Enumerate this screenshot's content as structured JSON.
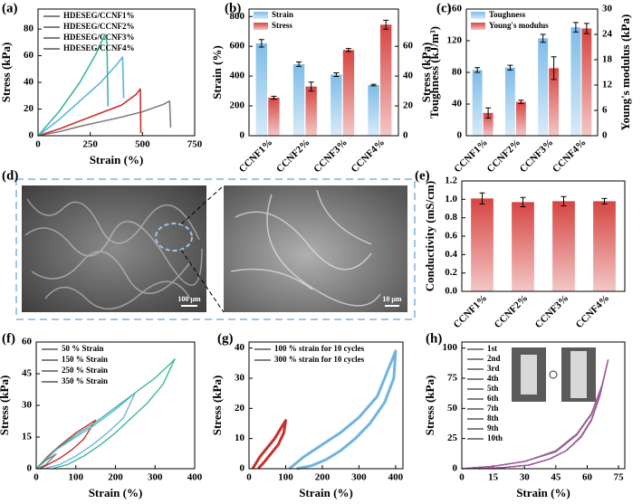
{
  "chart_data": [
    {
      "panel": "(a)",
      "type": "line",
      "xlabel": "Strain (%)",
      "ylabel": "Stress (kPa)",
      "xlim": [
        0,
        750
      ],
      "xticks": [
        0,
        250,
        500,
        750
      ],
      "ylim": [
        0,
        95
      ],
      "yticks": [
        0,
        20,
        40,
        60,
        80
      ],
      "series": [
        {
          "name": "HDESEG/CCNF1%",
          "color": "#808080",
          "x": [
            0,
            100,
            200,
            300,
            400,
            500,
            600,
            630,
            635
          ],
          "values": [
            0,
            3,
            7,
            10.5,
            14,
            18,
            23.5,
            26,
            6
          ]
        },
        {
          "name": "HDESEG/CCNF2%",
          "color": "#c9302c",
          "x": [
            0,
            100,
            200,
            300,
            400,
            470,
            490,
            492
          ],
          "values": [
            0,
            5,
            11,
            17,
            23,
            31,
            35,
            2
          ]
        },
        {
          "name": "HDESEG/CCNF3%",
          "color": "#5ab4e5",
          "x": [
            0,
            100,
            200,
            300,
            380,
            405,
            410
          ],
          "values": [
            0,
            12,
            26,
            40,
            54,
            59,
            28
          ]
        },
        {
          "name": "HDESEG/CCNF4%",
          "color": "#3cb89a",
          "x": [
            0,
            100,
            200,
            280,
            320,
            330,
            335
          ],
          "values": [
            0,
            18,
            40,
            62,
            76,
            70,
            22
          ]
        }
      ]
    },
    {
      "panel": "(b)",
      "type": "bar",
      "ylabel": "Strain (%)",
      "y2label": "Stress (kPa)",
      "categories": [
        "CCNF1%",
        "CCNF2%",
        "CCNF3%",
        "CCNF4%"
      ],
      "ylim": [
        0,
        850
      ],
      "yticks": [
        0,
        200,
        400,
        600,
        800
      ],
      "y2lim": [
        0,
        85
      ],
      "y2ticks": [
        0,
        20,
        40,
        60
      ],
      "series": [
        {
          "name": "Strain",
          "color": "#7dbce8",
          "values": [
            620,
            480,
            410,
            340
          ],
          "errors": [
            25,
            15,
            12,
            5
          ]
        },
        {
          "name": "Stress",
          "color": "#d64541",
          "axis": "y2",
          "values": [
            25.5,
            33,
            57.5,
            74.5
          ],
          "errors": [
            1,
            3,
            1,
            3
          ]
        }
      ]
    },
    {
      "panel": "(c)",
      "type": "bar",
      "ylabel": "Toughness (kJ/m³)",
      "y2label": "Young's modulus (kPa)",
      "categories": [
        "CCNF1%",
        "CCNF2%",
        "CCNF3%",
        "CCNF4%"
      ],
      "ylim": [
        0,
        160
      ],
      "yticks": [
        0,
        40,
        80,
        120,
        160
      ],
      "y2lim": [
        0,
        30
      ],
      "y2ticks": [
        0,
        6,
        12,
        18,
        24,
        30
      ],
      "series": [
        {
          "name": "Toughness",
          "color": "#7dbce8",
          "values": [
            83,
            86,
            123,
            137
          ],
          "errors": [
            3,
            3,
            5,
            6
          ]
        },
        {
          "name": "Young's modulus",
          "color": "#d64541",
          "axis": "y2",
          "values": [
            5.4,
            8,
            16,
            25.4
          ],
          "errors": [
            1.2,
            0.4,
            2.7,
            1.2
          ]
        }
      ]
    },
    {
      "panel": "(e)",
      "type": "bar",
      "ylabel": "Conductivity (mS/cm)",
      "categories": [
        "CCNF1%",
        "CCNF2%",
        "CCNF3%",
        "CCNF4%"
      ],
      "ylim": [
        0,
        1.2
      ],
      "yticks": [
        {
          "value": 0,
          "label": "0.0"
        },
        0.2,
        0.4,
        0.6,
        0.8,
        {
          "value": 1,
          "label": "1.0"
        },
        1.2
      ],
      "series": [
        {
          "color": "#d64541",
          "values": [
            1.01,
            0.97,
            0.98,
            0.98
          ],
          "errors": [
            0.06,
            0.05,
            0.05,
            0.03
          ]
        }
      ]
    },
    {
      "panel": "(f)",
      "type": "line",
      "xlabel": "Strain (%)",
      "ylabel": "Stress (kPa)",
      "xlim": [
        0,
        400
      ],
      "xticks": [
        0,
        100,
        200,
        300,
        400
      ],
      "ylim": [
        0,
        60
      ],
      "yticks": [
        0,
        15,
        30,
        45,
        60
      ],
      "series": [
        {
          "name": "50 % Strain",
          "color": "#808080",
          "x": [
            0,
            25,
            50,
            40,
            25,
            10,
            0
          ],
          "values": [
            0,
            4,
            7,
            5,
            2,
            0.5,
            0
          ]
        },
        {
          "name": "150 % Strain",
          "color": "#c9302c",
          "x": [
            0,
            30,
            60,
            100,
            150,
            120,
            90,
            60,
            30,
            10
          ],
          "values": [
            0,
            6,
            11,
            17,
            23,
            14,
            9,
            5,
            2,
            0
          ]
        },
        {
          "name": "250 % Strain",
          "color": "#6fb3e0",
          "x": [
            0,
            50,
            100,
            150,
            200,
            250,
            220,
            180,
            140,
            100,
            60,
            20
          ],
          "values": [
            0,
            9,
            15,
            21,
            28,
            36,
            24,
            17,
            11,
            6,
            2,
            0
          ]
        },
        {
          "name": "350 % Strain",
          "color": "#3cb89a",
          "x": [
            0,
            50,
            100,
            150,
            200,
            250,
            300,
            340,
            350,
            320,
            280,
            240,
            200,
            160,
            120,
            80,
            40
          ],
          "values": [
            0,
            9,
            16,
            22,
            29,
            36,
            43,
            50,
            52,
            40,
            31,
            24,
            17,
            11,
            6,
            2,
            0
          ]
        }
      ]
    },
    {
      "panel": "(g)",
      "type": "line",
      "xlabel": "Strain (%)",
      "ylabel": "Stress (kPa)",
      "xlim": [
        0,
        420
      ],
      "xticks": [
        0,
        100,
        200,
        300,
        400
      ],
      "ylim": [
        0,
        42
      ],
      "yticks": [
        0,
        10,
        20,
        30,
        40
      ],
      "series": [
        {
          "name": "100 % strain for 10 cycles",
          "color": "#c9302c",
          "x": [
            10,
            30,
            50,
            70,
            90,
            100,
            95,
            80,
            60,
            40,
            25
          ],
          "values": [
            0,
            4,
            7,
            10,
            14,
            16,
            12,
            8,
            5,
            2,
            0
          ]
        },
        {
          "name": "300 % strain for 10 cycles",
          "color": "#6fb3e0",
          "x": [
            110,
            150,
            200,
            250,
            300,
            350,
            400,
            395,
            370,
            330,
            290,
            250,
            210,
            170,
            130
          ],
          "values": [
            0,
            4,
            8,
            12,
            17,
            24,
            39,
            30,
            22,
            15,
            10,
            6,
            3,
            1,
            0
          ]
        }
      ]
    },
    {
      "panel": "(h)",
      "type": "line",
      "xlabel": "Strain (%)",
      "ylabel": "Stress (kPa)",
      "xlim": [
        0,
        78
      ],
      "xticks": [
        0,
        15,
        30,
        45,
        60,
        75
      ],
      "ylim": [
        0,
        105
      ],
      "yticks": [
        0,
        25,
        50,
        75,
        100
      ],
      "x": [
        0,
        15,
        30,
        45,
        55,
        62,
        67,
        70,
        66,
        62,
        57,
        50,
        42,
        32,
        20,
        8
      ],
      "series": [
        {
          "name": "1st",
          "color": "#808080",
          "values": [
            0,
            2,
            6,
            15,
            29,
            46,
            69,
            90,
            61,
            41,
            27,
            15,
            8,
            3,
            1,
            0
          ]
        },
        {
          "name": "2nd",
          "color": "#c9302c",
          "values": [
            0,
            2,
            6,
            14,
            28,
            45,
            68,
            90,
            60,
            40,
            26,
            15,
            8,
            3,
            1,
            0
          ]
        },
        {
          "name": "3rd",
          "color": "#6fb3e0",
          "values": [
            0,
            2,
            6,
            14,
            28,
            45,
            68,
            90,
            60,
            40,
            26,
            15,
            8,
            3,
            1,
            0
          ]
        },
        {
          "name": "4th",
          "color": "#3cb89a",
          "values": [
            0,
            2,
            6,
            14,
            28,
            45,
            68,
            90,
            60,
            40,
            26,
            15,
            8,
            3,
            1,
            0
          ]
        },
        {
          "name": "5th",
          "color": "#5d8fc9",
          "values": [
            0,
            2,
            6,
            14,
            28,
            45,
            68,
            90,
            60,
            40,
            26,
            15,
            8,
            3,
            1,
            0
          ]
        },
        {
          "name": "6th",
          "color": "#e39b3b",
          "values": [
            0,
            2,
            6,
            14,
            28,
            45,
            68,
            90,
            60,
            40,
            26,
            15,
            8,
            3,
            1,
            0
          ]
        },
        {
          "name": "7th",
          "color": "#1f7a6e",
          "values": [
            0,
            2,
            6,
            14,
            28,
            45,
            68,
            90,
            60,
            40,
            26,
            15,
            8,
            3,
            1,
            0
          ]
        },
        {
          "name": "8th",
          "color": "#8b7fb5",
          "values": [
            0,
            2,
            6,
            14,
            28,
            45,
            68,
            90,
            60,
            40,
            26,
            15,
            8,
            3,
            1,
            0
          ]
        },
        {
          "name": "9th",
          "color": "#b08fc7",
          "values": [
            0,
            2,
            6,
            14,
            28,
            45,
            68,
            90,
            60,
            40,
            26,
            15,
            8,
            3,
            1,
            0
          ]
        },
        {
          "name": "10th",
          "color": "#a64d9c",
          "values": [
            0,
            2,
            6,
            14,
            28,
            45,
            68,
            90,
            60,
            40,
            26,
            15,
            8,
            3,
            1,
            0
          ]
        }
      ]
    }
  ],
  "panel_d": {
    "panel": "(d)",
    "scale_bars": [
      "100 μm",
      "10 μm"
    ]
  }
}
